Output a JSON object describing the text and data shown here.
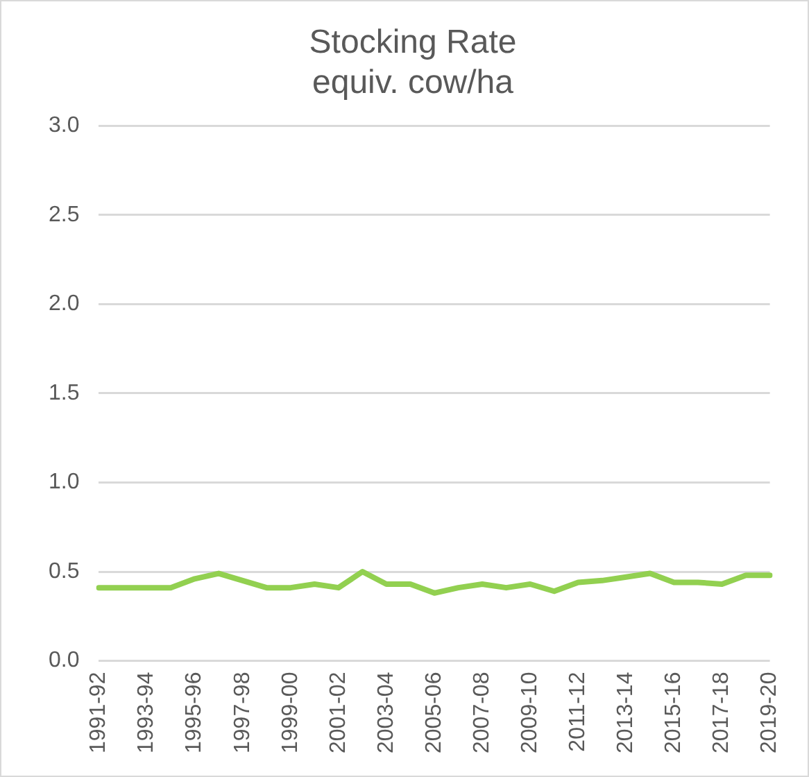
{
  "chart_data": {
    "type": "line",
    "title": "Stocking Rate",
    "subtitle": "equiv. cow/ha",
    "categories": [
      "1991-92",
      null,
      "1993-94",
      null,
      "1995-96",
      null,
      "1997-98",
      null,
      "1999-00",
      null,
      "2001-02",
      null,
      "2003-04",
      null,
      "2005-06",
      null,
      "2007-08",
      null,
      "2009-10",
      null,
      "2011-12",
      null,
      "2013-14",
      null,
      "2015-16",
      null,
      "2017-18",
      null,
      "2019-20"
    ],
    "series": [
      {
        "color": "#92d050",
        "values": [
          0.41,
          0.41,
          0.41,
          0.41,
          0.46,
          0.49,
          0.45,
          0.41,
          0.41,
          0.43,
          0.41,
          0.5,
          0.43,
          0.43,
          0.38,
          0.41,
          0.43,
          0.41,
          0.43,
          0.39,
          0.44,
          0.45,
          0.47,
          0.49,
          0.44,
          0.44,
          0.43,
          0.48,
          0.48
        ]
      }
    ],
    "ylim": [
      0,
      3
    ],
    "yticks": [
      {
        "value": 0,
        "label": "0.0"
      },
      {
        "value": 0.5,
        "label": "0.5"
      },
      {
        "value": 1,
        "label": "1.0"
      },
      {
        "value": 1.5,
        "label": "1.5"
      },
      {
        "value": 2,
        "label": "2.0"
      },
      {
        "value": 2.5,
        "label": "2.5"
      },
      {
        "value": 3,
        "label": "3.0"
      }
    ],
    "grid": "y",
    "legend": false,
    "marker": "none",
    "line_style": "solid"
  }
}
